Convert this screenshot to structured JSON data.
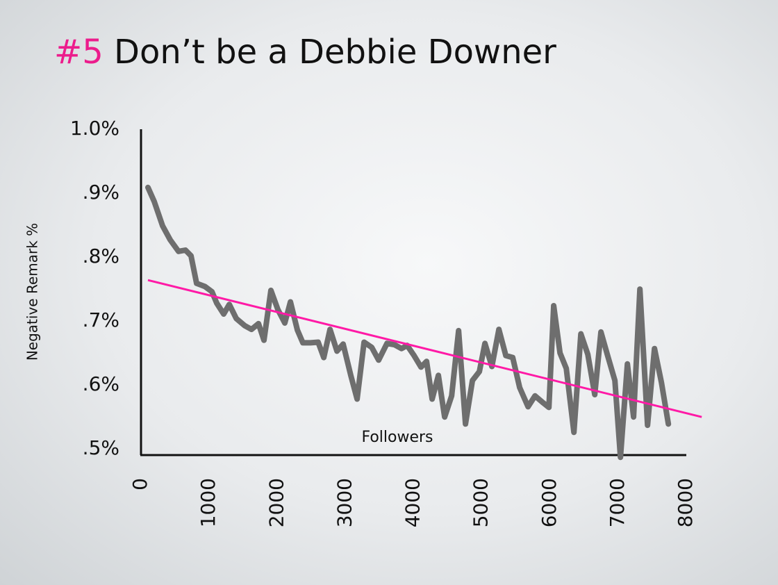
{
  "chart_data": {
    "type": "line",
    "title_prefix": "#5",
    "title_prefix_color": "#ec1c8c",
    "title": "Don’t be a Debbie Downer",
    "x_label": "Followers",
    "y_label": "Negative Remark %",
    "xlim": [
      0,
      8000
    ],
    "xticks": [
      0,
      1000,
      2000,
      3000,
      4000,
      5000,
      6000,
      7000,
      8000
    ],
    "ylim": [
      0.485,
      1.0
    ],
    "yticks": [
      {
        "value": 0.5,
        "label": ".5%"
      },
      {
        "value": 0.6,
        "label": ".6%"
      },
      {
        "value": 0.7,
        "label": ".7%"
      },
      {
        "value": 0.8,
        "label": ".8%"
      },
      {
        "value": 0.9,
        "label": ".9%"
      },
      {
        "value": 1.0,
        "label": "1.0%"
      }
    ],
    "series": [
      {
        "color": "#6e6e6e",
        "x": [
          102,
          194,
          316,
          428,
          550,
          652,
          734,
          815,
          938,
          1040,
          1111,
          1213,
          1295,
          1397,
          1519,
          1621,
          1723,
          1804,
          1906,
          2008,
          2110,
          2192,
          2294,
          2375,
          2487,
          2599,
          2681,
          2773,
          2875,
          2966,
          3078,
          3170,
          3272,
          3384,
          3486,
          3609,
          3721,
          3823,
          3904,
          4006,
          4108,
          4190,
          4271,
          4363,
          4455,
          4557,
          4659,
          4760,
          4862,
          4964,
          5046,
          5148,
          5250,
          5352,
          5453,
          5555,
          5678,
          5780,
          5902,
          5984,
          6055,
          6147,
          6239,
          6351,
          6453,
          6555,
          6657,
          6748,
          6840,
          6952,
          7034,
          7136,
          7227,
          7319,
          7431,
          7533,
          7635,
          7737
        ],
        "values": [
          0.909,
          0.887,
          0.849,
          0.827,
          0.809,
          0.811,
          0.802,
          0.759,
          0.754,
          0.746,
          0.728,
          0.711,
          0.726,
          0.704,
          0.693,
          0.687,
          0.696,
          0.67,
          0.748,
          0.718,
          0.697,
          0.73,
          0.686,
          0.666,
          0.666,
          0.667,
          0.643,
          0.687,
          0.653,
          0.664,
          0.615,
          0.578,
          0.667,
          0.659,
          0.639,
          0.665,
          0.663,
          0.657,
          0.662,
          0.646,
          0.628,
          0.637,
          0.578,
          0.615,
          0.55,
          0.583,
          0.685,
          0.539,
          0.607,
          0.621,
          0.665,
          0.629,
          0.687,
          0.646,
          0.643,
          0.596,
          0.566,
          0.583,
          0.572,
          0.565,
          0.724,
          0.65,
          0.626,
          0.526,
          0.68,
          0.648,
          0.585,
          0.683,
          0.648,
          0.607,
          0.487,
          0.633,
          0.55,
          0.75,
          0.537,
          0.657,
          0.604,
          0.539
        ]
      }
    ],
    "trend_line": {
      "color": "#ff1aa6",
      "x": [
        102,
        8226
      ],
      "values": [
        0.764,
        0.55
      ]
    }
  }
}
